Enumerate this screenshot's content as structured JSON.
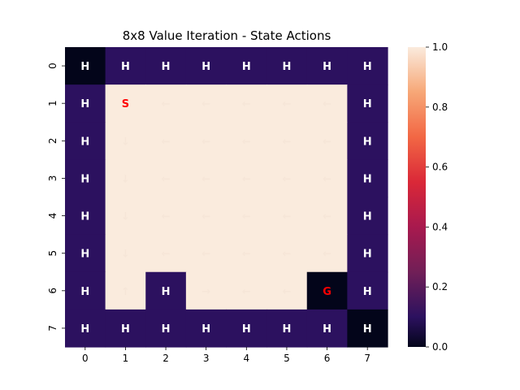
{
  "chart_data": {
    "type": "heatmap",
    "title": "8x8 Value Iteration - State Actions",
    "xlabel": "",
    "ylabel": "",
    "x_ticks": [
      "0",
      "1",
      "2",
      "3",
      "4",
      "5",
      "6",
      "7"
    ],
    "y_ticks": [
      "0",
      "1",
      "2",
      "3",
      "4",
      "5",
      "6",
      "7"
    ],
    "values": [
      [
        0.0,
        0.1,
        0.1,
        0.1,
        0.1,
        0.1,
        0.1,
        0.1
      ],
      [
        0.1,
        1.0,
        1.0,
        1.0,
        1.0,
        1.0,
        1.0,
        0.1
      ],
      [
        0.1,
        1.0,
        1.0,
        1.0,
        1.0,
        1.0,
        1.0,
        0.1
      ],
      [
        0.1,
        1.0,
        1.0,
        1.0,
        1.0,
        1.0,
        1.0,
        0.1
      ],
      [
        0.1,
        1.0,
        1.0,
        1.0,
        1.0,
        1.0,
        1.0,
        0.1
      ],
      [
        0.1,
        1.0,
        1.0,
        1.0,
        1.0,
        1.0,
        1.0,
        0.1
      ],
      [
        0.1,
        1.0,
        0.1,
        1.0,
        1.0,
        1.0,
        0.0,
        0.1
      ],
      [
        0.1,
        0.1,
        0.1,
        0.1,
        0.1,
        0.1,
        0.1,
        0.0
      ]
    ],
    "annotations": [
      [
        "H",
        "H",
        "H",
        "H",
        "H",
        "H",
        "H",
        "H"
      ],
      [
        "H",
        "S",
        "←",
        "←",
        "←",
        "←",
        "←",
        "H"
      ],
      [
        "H",
        "↓",
        "←",
        "←",
        "←",
        "←",
        "←",
        "H"
      ],
      [
        "H",
        "↓",
        "←",
        "←",
        "←",
        "←",
        "←",
        "H"
      ],
      [
        "H",
        "↓",
        "←",
        "←",
        "←",
        "←",
        "←",
        "H"
      ],
      [
        "H",
        "↓",
        "←",
        "←",
        "←",
        "←",
        "←",
        "H"
      ],
      [
        "H",
        "↑",
        "H",
        "→",
        "←",
        "←",
        "G",
        "H"
      ],
      [
        "H",
        "H",
        "H",
        "H",
        "H",
        "H",
        "H",
        "H"
      ]
    ],
    "colorbar": {
      "min": 0.0,
      "max": 1.0,
      "ticks": [
        "0.0",
        "0.2",
        "0.4",
        "0.6",
        "0.8",
        "1.0"
      ]
    },
    "colormap": "rocket",
    "colors": {
      "highlight_text": "#ff0000",
      "light_text": "#ffffff"
    },
    "grid": false,
    "legend": "none"
  }
}
